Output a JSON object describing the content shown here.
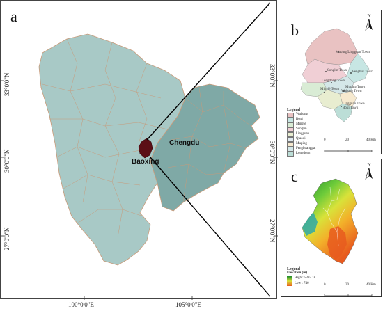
{
  "panels": {
    "a": {
      "letter": "a"
    },
    "b": {
      "letter": "b"
    },
    "c": {
      "letter": "c"
    }
  },
  "panel_a": {
    "cities": {
      "chengdu": "Chengdu",
      "baoxing": "Baoxing"
    },
    "left_ticks": [
      "33°0'0\"N",
      "30°0'0\"N",
      "27°0'0\"N"
    ],
    "right_ticks": [
      "33°0'0\"N",
      "30°0'0\"N",
      "27°0'0\"N"
    ],
    "bottom_ticks": [
      "100°0'0\"E",
      "105°0'0\"E"
    ],
    "colors": {
      "province": "#a8c9c6",
      "eastern": "#7fa9a6",
      "baoxing": "#5b0f16",
      "boundaries": "#c79a7a"
    }
  },
  "panel_b": {
    "north": "N",
    "legend_title": "Legend",
    "legend_items": [
      {
        "label": "Wuhong",
        "color": "#e9c2c2"
      },
      {
        "label": "Boxi",
        "color": "#c7e6e3"
      },
      {
        "label": "Minglé",
        "color": "#d9ecd5"
      },
      {
        "label": "Songlin",
        "color": "#f0cfd5"
      },
      {
        "label": "Lingguan",
        "color": "#e8edd0"
      },
      {
        "label": "Qiaoqi",
        "color": "#dfe9ef"
      },
      {
        "label": "Muping",
        "color": "#f6e9cf"
      },
      {
        "label": "Fenghuanggai",
        "color": "#d4e7e8"
      },
      {
        "label": "Longdong",
        "color": "#bcded7"
      }
    ],
    "place_labels": [
      "Muping/Lingguan Town",
      "Songlin Town",
      "Fenghua Town",
      "Longdong Town",
      "Muping Town",
      "Wuhong Town",
      "Minglé Town",
      "Lingguan Town",
      "Boxi Town"
    ],
    "scale": [
      "0",
      "20",
      "40 Km"
    ]
  },
  "panel_c": {
    "north": "N",
    "legend_title": "Legend",
    "legend_subtitle": "Elevation (m)",
    "legend_high": "High : 5397.18",
    "legend_low": "Low : 746",
    "scale": [
      "0",
      "20",
      "40 Km"
    ]
  }
}
